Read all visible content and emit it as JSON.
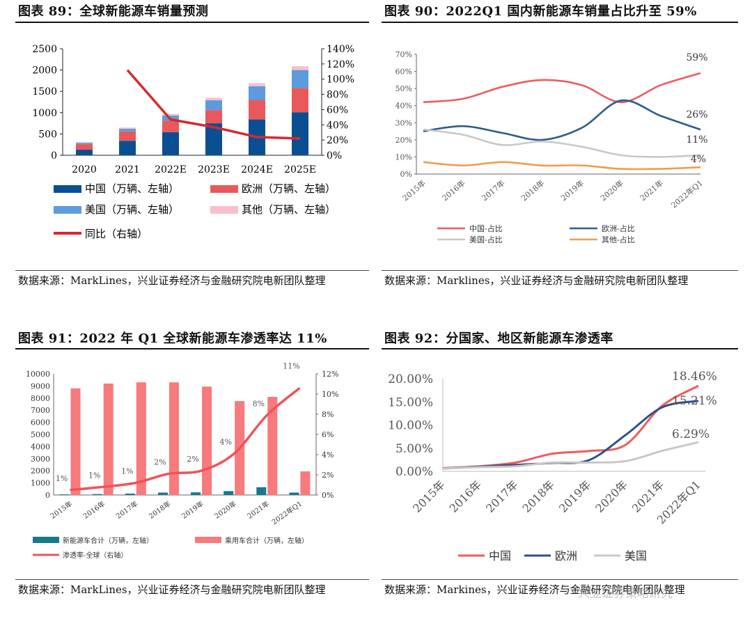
{
  "panels": [
    {
      "title": "图表 89：全球新能源车销量预测",
      "source": "数据来源：MarkLines，兴业证券经济与金融研究院电新团队整理"
    },
    {
      "title": "图表 90：2022Q1 国内新能源车销量占比升至 59%",
      "source": "数据来源：Marklines，兴业证券经济与金融研究院电新团队整理"
    },
    {
      "title": "图表 91：2022 年 Q1 全球新能源车渗透率达 11%",
      "source": "数据来源：MarkLines，兴业证券经济与金融研究院电新团队整理"
    },
    {
      "title": "图表 92：分国家、地区新能源车渗透率",
      "source": "数据来源：Markines，兴业证券经济与金融研究院电新团队整理"
    }
  ],
  "watermark": "兴业证券策略研究",
  "chart_data": [
    {
      "type": "bar",
      "stacked": true,
      "categories": [
        "2020",
        "2021",
        "2022E",
        "2023E",
        "2024E",
        "2025E"
      ],
      "series": [
        {
          "name": "中国（万辆、左轴）",
          "values": [
            130,
            340,
            540,
            750,
            840,
            1010
          ],
          "color": "#0b4f93"
        },
        {
          "name": "欧洲（万辆、左轴）",
          "values": [
            130,
            220,
            270,
            310,
            460,
            570
          ],
          "color": "#e8595b"
        },
        {
          "name": "美国（万辆、左轴）",
          "values": [
            30,
            60,
            120,
            230,
            320,
            420
          ],
          "color": "#5b9bde"
        },
        {
          "name": "其他（万辆、左轴）",
          "values": [
            20,
            30,
            40,
            60,
            70,
            90
          ],
          "color": "#f9bfcd"
        }
      ],
      "line": {
        "name": "同比（右轴）",
        "values": [
          null,
          1.12,
          0.47,
          0.37,
          0.24,
          0.22
        ],
        "color": "#d9272e"
      },
      "ylim": [
        0,
        2500
      ],
      "yticks": [
        "2500",
        "2000",
        "1500",
        "1000",
        "500",
        "0"
      ],
      "y2lim": [
        0,
        1.4
      ],
      "y2ticks": [
        "140%",
        "120%",
        "100%",
        "80%",
        "60%",
        "40%",
        "20%",
        "0%"
      ]
    },
    {
      "type": "line",
      "categories": [
        "2015年",
        "2016年",
        "2017年",
        "2018年",
        "2019年",
        "2020年",
        "2021年",
        "2022年Q1"
      ],
      "series": [
        {
          "name": "中国-占比",
          "values": [
            0.42,
            0.44,
            0.51,
            0.55,
            0.52,
            0.42,
            0.52,
            0.59
          ],
          "color": "#f05a5c"
        },
        {
          "name": "欧洲-占比",
          "values": [
            0.25,
            0.28,
            0.24,
            0.2,
            0.27,
            0.43,
            0.34,
            0.26
          ],
          "color": "#2c5c8e"
        },
        {
          "name": "美国-占比",
          "values": [
            0.26,
            0.23,
            0.17,
            0.19,
            0.16,
            0.11,
            0.1,
            0.11
          ],
          "color": "#c8c8c8"
        },
        {
          "name": "其他-占比",
          "values": [
            0.07,
            0.05,
            0.07,
            0.05,
            0.05,
            0.03,
            0.03,
            0.04
          ],
          "color": "#f39c4a"
        }
      ],
      "end_labels": [
        "59%",
        "26%",
        "11%",
        "4%"
      ],
      "ylim": [
        0,
        0.7
      ],
      "yticks": [
        "70%",
        "60%",
        "50%",
        "40%",
        "30%",
        "20%",
        "10%",
        "0%"
      ]
    },
    {
      "type": "bar",
      "categories": [
        "2015年",
        "2016年",
        "2017年",
        "2018年",
        "2019年",
        "2020年",
        "2021年",
        "2022年Q1"
      ],
      "series": [
        {
          "name": "新能源车合计（万辆，左轴）",
          "values": [
            50,
            75,
            115,
            200,
            220,
            320,
            640,
            200
          ],
          "color": "#157a8c"
        },
        {
          "name": "乘用车合计（万辆，左轴）",
          "values": [
            8800,
            9200,
            9300,
            9300,
            8950,
            7750,
            8100,
            1950
          ],
          "color": "#f77a7c"
        }
      ],
      "line": {
        "name": "渗透率-全球（右轴）",
        "values": [
          0.005,
          0.008,
          0.012,
          0.021,
          0.024,
          0.041,
          0.079,
          0.106
        ],
        "color": "#f25257"
      },
      "data_labels": [
        "1%",
        "1%",
        "1%",
        "2%",
        "2%",
        "4%",
        "8%",
        "11%"
      ],
      "ylim": [
        0,
        10000
      ],
      "yticks": [
        "10000",
        "9000",
        "8000",
        "7000",
        "6000",
        "5000",
        "4000",
        "3000",
        "2000",
        "1000",
        "0"
      ],
      "y2lim": [
        0,
        0.12
      ],
      "y2ticks": [
        "12%",
        "10%",
        "8%",
        "6%",
        "4%",
        "2%",
        "0%"
      ]
    },
    {
      "type": "line",
      "categories": [
        "2015年",
        "2016年",
        "2017年",
        "2018年",
        "2019年",
        "2020年",
        "2021年",
        "2022年Q1"
      ],
      "series": [
        {
          "name": "中国",
          "values": [
            0.007,
            0.011,
            0.019,
            0.038,
            0.044,
            0.057,
            0.141,
            0.1846
          ],
          "color": "#f05a5c"
        },
        {
          "name": "欧洲",
          "values": [
            0.006,
            0.01,
            0.014,
            0.018,
            0.024,
            0.078,
            0.138,
            0.1521
          ],
          "color": "#2c5189"
        },
        {
          "name": "美国",
          "values": [
            0.006,
            0.009,
            0.011,
            0.019,
            0.019,
            0.022,
            0.044,
            0.0629
          ],
          "color": "#c8c8c8"
        }
      ],
      "end_labels": [
        "18.46%",
        "15.21%",
        "6.29%"
      ],
      "ylim": [
        0,
        0.2
      ],
      "yticks": [
        "20.00%",
        "15.00%",
        "10.00%",
        "5.00%",
        "0.00%"
      ]
    }
  ]
}
